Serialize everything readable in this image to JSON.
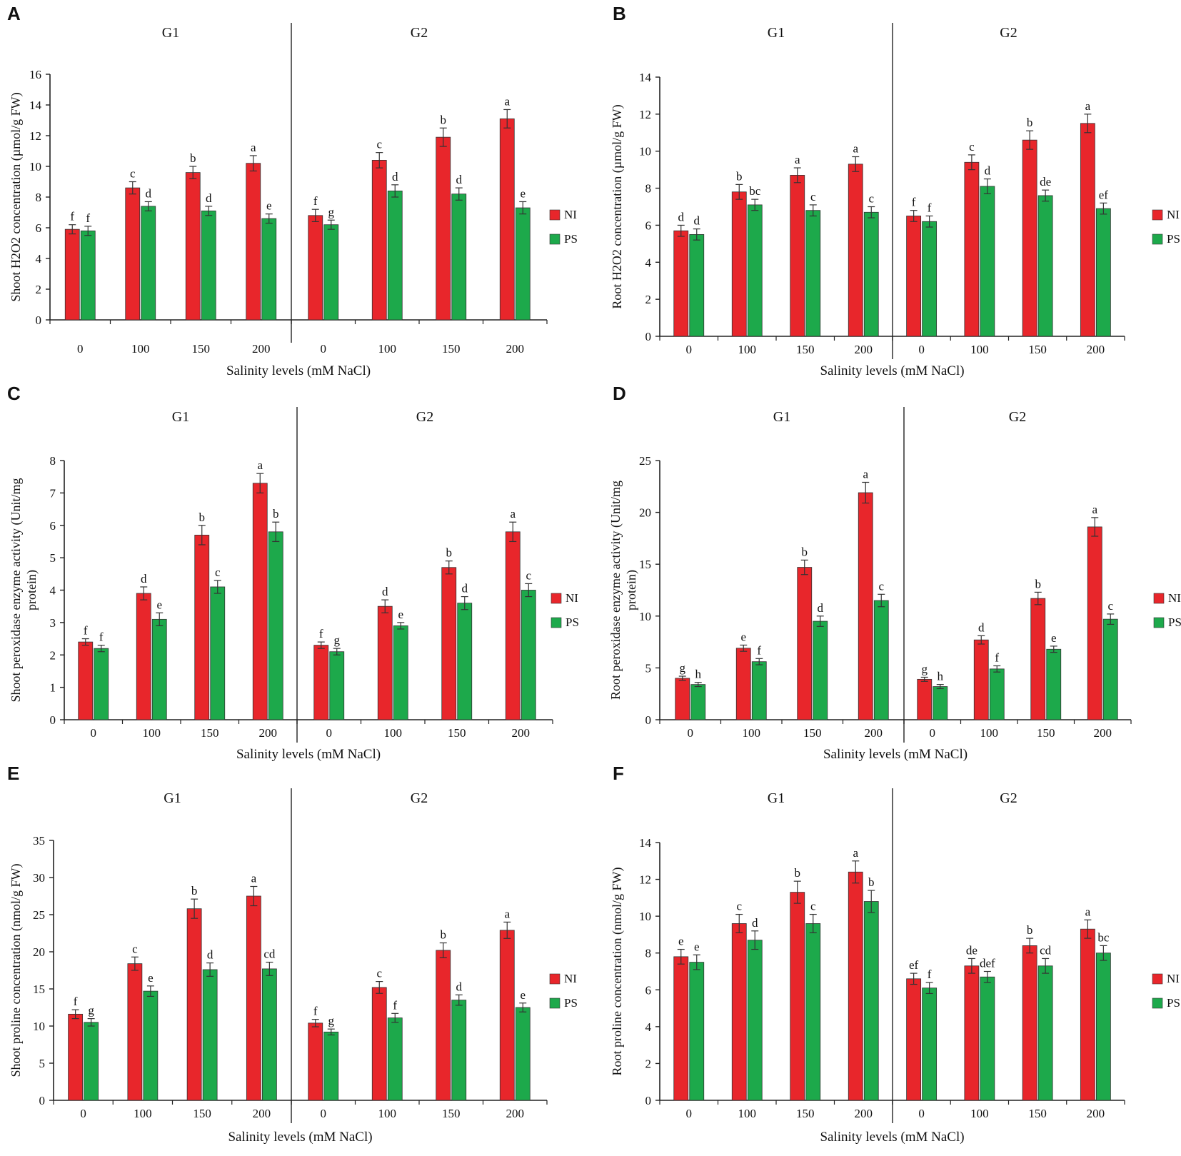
{
  "colors": {
    "NI": "#e8262b",
    "PS": "#1da94b",
    "axis": "#222222",
    "text": "#111111"
  },
  "shared": {
    "xlabel": "Salinity levels (mM NaCl)",
    "legend": [
      "NI",
      "PS"
    ],
    "groups": [
      "G1",
      "G2"
    ],
    "categories": [
      "0",
      "100",
      "150",
      "200"
    ]
  },
  "chart_data": [
    {
      "type": "bar",
      "panel": "A",
      "title": "",
      "ylabel": "Shoot H2O2 concentration (µmol/g FW)",
      "xlabel": "Salinity levels (mM NaCl)",
      "ylim": [
        0,
        16
      ],
      "yticks": [
        0,
        2,
        4,
        6,
        8,
        10,
        12,
        14,
        16
      ],
      "groups": [
        "G1",
        "G2"
      ],
      "categories": [
        "0",
        "100",
        "150",
        "200"
      ],
      "series": [
        {
          "name": "NI",
          "values": [
            [
              5.9,
              8.6,
              9.6,
              10.2
            ],
            [
              6.8,
              10.4,
              11.9,
              13.1
            ]
          ],
          "errors": [
            [
              0.3,
              0.4,
              0.4,
              0.5
            ],
            [
              0.4,
              0.5,
              0.6,
              0.6
            ]
          ],
          "labels": [
            [
              "f",
              "c",
              "b",
              "a"
            ],
            [
              "f",
              "c",
              "b",
              "a"
            ]
          ]
        },
        {
          "name": "PS",
          "values": [
            [
              5.8,
              7.4,
              7.1,
              6.6
            ],
            [
              6.2,
              8.4,
              8.2,
              7.3
            ]
          ],
          "errors": [
            [
              0.3,
              0.3,
              0.3,
              0.3
            ],
            [
              0.3,
              0.4,
              0.4,
              0.4
            ]
          ],
          "labels": [
            [
              "f",
              "d",
              "d",
              "e"
            ],
            [
              "g",
              "d",
              "d",
              "e"
            ]
          ]
        }
      ]
    },
    {
      "type": "bar",
      "panel": "B",
      "title": "",
      "ylabel": "Root H2O2 concentration (µmol/g FW)",
      "xlabel": "Salinity levels (mM NaCl)",
      "ylim": [
        0,
        14
      ],
      "yticks": [
        0,
        2,
        4,
        6,
        8,
        10,
        12,
        14
      ],
      "groups": [
        "G1",
        "G2"
      ],
      "categories": [
        "0",
        "100",
        "150",
        "200"
      ],
      "series": [
        {
          "name": "NI",
          "values": [
            [
              5.7,
              7.8,
              8.7,
              9.3
            ],
            [
              6.5,
              9.4,
              10.6,
              11.5
            ]
          ],
          "errors": [
            [
              0.3,
              0.4,
              0.4,
              0.4
            ],
            [
              0.3,
              0.4,
              0.5,
              0.5
            ]
          ],
          "labels": [
            [
              "d",
              "b",
              "a",
              "a"
            ],
            [
              "f",
              "c",
              "b",
              "a"
            ]
          ]
        },
        {
          "name": "PS",
          "values": [
            [
              5.5,
              7.1,
              6.8,
              6.7
            ],
            [
              6.2,
              8.1,
              7.6,
              6.9
            ]
          ],
          "errors": [
            [
              0.3,
              0.3,
              0.3,
              0.3
            ],
            [
              0.3,
              0.4,
              0.3,
              0.3
            ]
          ],
          "labels": [
            [
              "d",
              "bc",
              "c",
              "c"
            ],
            [
              "f",
              "d",
              "de",
              "ef"
            ]
          ]
        }
      ]
    },
    {
      "type": "bar",
      "panel": "C",
      "title": "",
      "ylabel": "Shoot peroxidase enzyme activity (Unit/mg protein)",
      "ylabel_lines": [
        "Shoot peroxidase enzyme activity (Unit/mg",
        "protein)"
      ],
      "xlabel": "Salinity levels (mM NaCl)",
      "ylim": [
        0,
        8
      ],
      "yticks": [
        0,
        1,
        2,
        3,
        4,
        5,
        6,
        7,
        8
      ],
      "groups": [
        "G1",
        "G2"
      ],
      "categories": [
        "0",
        "100",
        "150",
        "200"
      ],
      "series": [
        {
          "name": "NI",
          "values": [
            [
              2.4,
              3.9,
              5.7,
              7.3
            ],
            [
              2.3,
              3.5,
              4.7,
              5.8
            ]
          ],
          "errors": [
            [
              0.1,
              0.2,
              0.3,
              0.3
            ],
            [
              0.1,
              0.2,
              0.2,
              0.3
            ]
          ],
          "labels": [
            [
              "f",
              "d",
              "b",
              "a"
            ],
            [
              "f",
              "d",
              "b",
              "a"
            ]
          ]
        },
        {
          "name": "PS",
          "values": [
            [
              2.2,
              3.1,
              4.1,
              5.8
            ],
            [
              2.1,
              2.9,
              3.6,
              4.0
            ]
          ],
          "errors": [
            [
              0.1,
              0.2,
              0.2,
              0.3
            ],
            [
              0.1,
              0.1,
              0.2,
              0.2
            ]
          ],
          "labels": [
            [
              "f",
              "e",
              "c",
              "b"
            ],
            [
              "g",
              "e",
              "d",
              "c"
            ]
          ]
        }
      ]
    },
    {
      "type": "bar",
      "panel": "D",
      "title": "",
      "ylabel": "Root peroxidase enzyme activity (Unit/mg protein)",
      "ylabel_lines": [
        "Root peroxidase enzyme activity (Unit/mg",
        "protein)"
      ],
      "xlabel": "Salinity levels (mM NaCl)",
      "ylim": [
        0,
        25
      ],
      "yticks": [
        0,
        5,
        10,
        15,
        20,
        25
      ],
      "groups": [
        "G1",
        "G2"
      ],
      "categories": [
        "0",
        "100",
        "150",
        "200"
      ],
      "series": [
        {
          "name": "NI",
          "values": [
            [
              4.0,
              6.9,
              14.7,
              21.9
            ],
            [
              3.9,
              7.7,
              11.7,
              18.6
            ]
          ],
          "errors": [
            [
              0.2,
              0.3,
              0.7,
              1.0
            ],
            [
              0.2,
              0.4,
              0.6,
              0.9
            ]
          ],
          "labels": [
            [
              "g",
              "e",
              "b",
              "a"
            ],
            [
              "g",
              "d",
              "b",
              "a"
            ]
          ]
        },
        {
          "name": "PS",
          "values": [
            [
              3.4,
              5.6,
              9.5,
              11.5
            ],
            [
              3.2,
              4.9,
              6.8,
              9.7
            ]
          ],
          "errors": [
            [
              0.2,
              0.3,
              0.5,
              0.6
            ],
            [
              0.2,
              0.3,
              0.3,
              0.5
            ]
          ],
          "labels": [
            [
              "h",
              "f",
              "d",
              "c"
            ],
            [
              "h",
              "f",
              "e",
              "c"
            ]
          ]
        }
      ]
    },
    {
      "type": "bar",
      "panel": "E",
      "title": "",
      "ylabel": "Shoot proline concentration (nmol/g FW)",
      "xlabel": "Salinity levels (mM NaCl)",
      "ylim": [
        0,
        35
      ],
      "yticks": [
        0,
        5,
        10,
        15,
        20,
        25,
        30,
        35
      ],
      "groups": [
        "G1",
        "G2"
      ],
      "categories": [
        "0",
        "100",
        "150",
        "200"
      ],
      "series": [
        {
          "name": "NI",
          "values": [
            [
              11.6,
              18.4,
              25.8,
              27.5
            ],
            [
              10.4,
              15.2,
              20.2,
              22.9
            ]
          ],
          "errors": [
            [
              0.6,
              0.9,
              1.3,
              1.3
            ],
            [
              0.5,
              0.8,
              1.0,
              1.1
            ]
          ],
          "labels": [
            [
              "f",
              "c",
              "b",
              "a"
            ],
            [
              "f",
              "c",
              "b",
              "a"
            ]
          ]
        },
        {
          "name": "PS",
          "values": [
            [
              10.5,
              14.7,
              17.6,
              17.7
            ],
            [
              9.2,
              11.1,
              13.5,
              12.5
            ]
          ],
          "errors": [
            [
              0.5,
              0.7,
              0.9,
              0.9
            ],
            [
              0.4,
              0.6,
              0.7,
              0.6
            ]
          ],
          "labels": [
            [
              "g",
              "e",
              "d",
              "cd"
            ],
            [
              "g",
              "f",
              "d",
              "e"
            ]
          ]
        }
      ]
    },
    {
      "type": "bar",
      "panel": "F",
      "title": "",
      "ylabel": "Root proline concentration (nmol/g FW)",
      "xlabel": "Salinity levels (mM NaCl)",
      "ylim": [
        0,
        14
      ],
      "yticks": [
        0,
        2,
        4,
        6,
        8,
        10,
        12,
        14
      ],
      "groups": [
        "G1",
        "G2"
      ],
      "categories": [
        "0",
        "100",
        "150",
        "200"
      ],
      "series": [
        {
          "name": "NI",
          "values": [
            [
              7.8,
              9.6,
              11.3,
              12.4
            ],
            [
              6.6,
              7.3,
              8.4,
              9.3
            ]
          ],
          "errors": [
            [
              0.4,
              0.5,
              0.6,
              0.6
            ],
            [
              0.3,
              0.4,
              0.4,
              0.5
            ]
          ],
          "labels": [
            [
              "e",
              "c",
              "b",
              "a"
            ],
            [
              "ef",
              "de",
              "b",
              "a"
            ]
          ]
        },
        {
          "name": "PS",
          "values": [
            [
              7.5,
              8.7,
              9.6,
              10.8
            ],
            [
              6.1,
              6.7,
              7.3,
              8.0
            ]
          ],
          "errors": [
            [
              0.4,
              0.5,
              0.5,
              0.6
            ],
            [
              0.3,
              0.3,
              0.4,
              0.4
            ]
          ],
          "labels": [
            [
              "e",
              "d",
              "c",
              "b"
            ],
            [
              "f",
              "def",
              "cd",
              "bc"
            ]
          ]
        }
      ]
    }
  ]
}
